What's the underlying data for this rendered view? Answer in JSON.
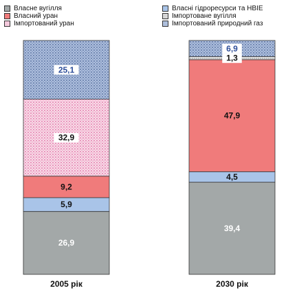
{
  "chart_data": {
    "type": "stacked-bar",
    "categories": [
      "2005 рік",
      "2030  рік"
    ],
    "ylim": [
      0,
      100
    ],
    "series": [
      {
        "name": "Власне вугілля",
        "values": [
          26.9,
          39.4
        ],
        "labels": [
          "26,9",
          "39,4"
        ],
        "color": "#a3a8a8",
        "pattern": "solid",
        "label_color": "#ffffff"
      },
      {
        "name": "Власні гідроресурси та НВІЕ",
        "values": [
          5.9,
          4.5
        ],
        "labels": [
          "5,9",
          "4,5"
        ],
        "color": "#a9c4e8",
        "pattern": "solid",
        "label_color": "#111111"
      },
      {
        "name": "Власний уран",
        "values": [
          9.2,
          47.9
        ],
        "labels": [
          "9,2",
          "47,9"
        ],
        "color": "#f07b7b",
        "pattern": "solid",
        "label_color": "#111111"
      },
      {
        "name": "Імпортоване вугілля",
        "values": [
          0,
          1.3
        ],
        "labels": [
          "",
          "1,3"
        ],
        "color": "#d6d6d6",
        "pattern": "fine-dots",
        "label_color": "#111111"
      },
      {
        "name": "Імпортований уран",
        "values": [
          32.9,
          0
        ],
        "labels": [
          "32,9",
          ""
        ],
        "color": "#f4c9dc",
        "pattern": "pink-dots",
        "label_color": "#111111"
      },
      {
        "name": "Імпортований природний газ",
        "values": [
          25.1,
          6.9
        ],
        "labels": [
          "25,1",
          "6,9"
        ],
        "color": "#aebfdc",
        "pattern": "blue-dots",
        "label_color": "#2f4f9a"
      }
    ],
    "legend_left": [
      "Власне вугілля",
      "Власний уран",
      "Імпортований уран"
    ],
    "legend_right": [
      "Власні гідроресурси та НВІЕ",
      "Імпортоване вугілля",
      "Імпортований природний газ"
    ]
  }
}
